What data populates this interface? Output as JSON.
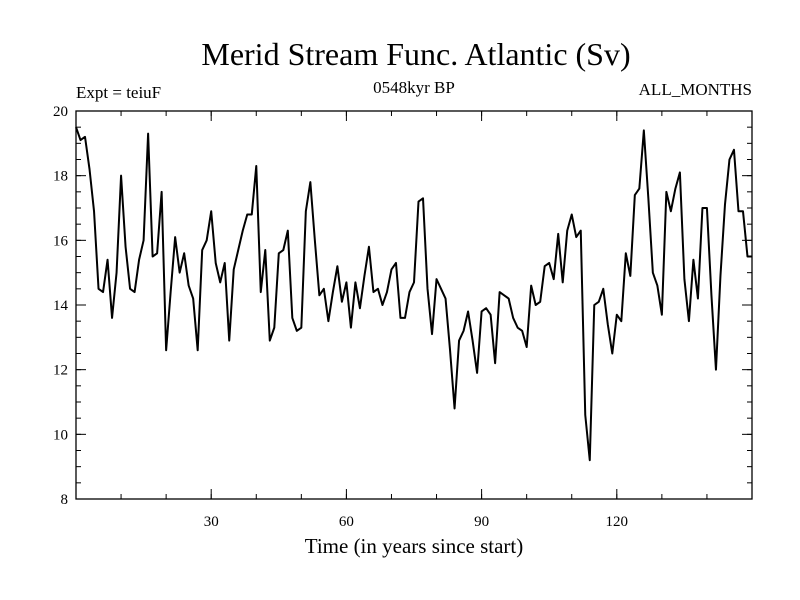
{
  "chart_data": {
    "type": "line",
    "title": "Merid Stream Func. Atlantic (Sv)",
    "subtitle_left": "Expt = teiuF",
    "subtitle_center": "0548kyr BP",
    "subtitle_right": "ALL_MONTHS",
    "xlabel": "Time (in years since start)",
    "ylabel": "",
    "xlim": [
      0,
      150
    ],
    "ylim": [
      8,
      20
    ],
    "xticks_major": [
      30,
      60,
      90,
      120
    ],
    "xticks_minor_step": 10,
    "yticks_major": [
      8,
      10,
      12,
      14,
      16,
      18,
      20
    ],
    "yticks_minor_step": 0.5,
    "grid": false,
    "line_color": "#000000",
    "series": [
      {
        "name": "Merid Stream Func.",
        "x": [
          0,
          1,
          2,
          3,
          4,
          5,
          6,
          7,
          8,
          9,
          10,
          11,
          12,
          13,
          14,
          15,
          16,
          17,
          18,
          19,
          20,
          21,
          22,
          23,
          24,
          25,
          26,
          27,
          28,
          29,
          30,
          31,
          32,
          33,
          34,
          35,
          36,
          37,
          38,
          39,
          40,
          41,
          42,
          43,
          44,
          45,
          46,
          47,
          48,
          49,
          50,
          51,
          52,
          53,
          54,
          55,
          56,
          57,
          58,
          59,
          60,
          61,
          62,
          63,
          64,
          65,
          66,
          67,
          68,
          69,
          70,
          71,
          72,
          73,
          74,
          75,
          76,
          77,
          78,
          79,
          80,
          81,
          82,
          83,
          84,
          85,
          86,
          87,
          88,
          89,
          90,
          91,
          92,
          93,
          94,
          95,
          96,
          97,
          98,
          99,
          100,
          101,
          102,
          103,
          104,
          105,
          106,
          107,
          108,
          109,
          110,
          111,
          112,
          113,
          114,
          115,
          116,
          117,
          118,
          119,
          120,
          121,
          122,
          123,
          124,
          125,
          126,
          127,
          128,
          129,
          130,
          131,
          132,
          133,
          134,
          135,
          136,
          137,
          138,
          139,
          140,
          141,
          142,
          143,
          144,
          145,
          146,
          147,
          148,
          149,
          150
        ],
        "values": [
          19.5,
          19.1,
          19.2,
          18.2,
          16.9,
          14.5,
          14.4,
          15.4,
          13.6,
          15.0,
          18.0,
          15.8,
          14.5,
          14.4,
          15.4,
          16.0,
          19.3,
          15.5,
          15.6,
          17.5,
          12.6,
          14.4,
          16.1,
          15.0,
          15.6,
          14.6,
          14.2,
          12.6,
          15.7,
          16.0,
          16.9,
          15.3,
          14.7,
          15.3,
          12.9,
          15.1,
          15.7,
          16.3,
          16.8,
          16.8,
          18.3,
          14.4,
          15.7,
          12.9,
          13.3,
          15.6,
          15.7,
          16.3,
          13.6,
          13.2,
          13.3,
          16.9,
          17.8,
          16.0,
          14.3,
          14.5,
          13.5,
          14.4,
          15.2,
          14.1,
          14.7,
          13.3,
          14.7,
          13.9,
          14.9,
          15.8,
          14.4,
          14.5,
          14.0,
          14.4,
          15.1,
          15.3,
          13.6,
          13.6,
          14.4,
          14.7,
          17.2,
          17.3,
          14.5,
          13.1,
          14.8,
          14.5,
          14.2,
          12.6,
          10.8,
          12.9,
          13.2,
          13.8,
          12.9,
          11.9,
          13.8,
          13.9,
          13.7,
          12.2,
          14.4,
          14.3,
          14.2,
          13.6,
          13.3,
          13.2,
          12.7,
          14.6,
          14.0,
          14.1,
          15.2,
          15.3,
          14.8,
          16.2,
          14.7,
          16.3,
          16.8,
          16.1,
          16.3,
          10.6,
          9.2,
          14.0,
          14.1,
          14.5,
          13.4,
          12.5,
          13.7,
          13.5,
          15.6,
          14.9,
          17.4,
          17.6,
          19.4,
          17.3,
          15.0,
          14.6,
          13.7,
          17.5,
          16.9,
          17.6,
          18.1,
          14.8,
          13.5,
          15.4,
          14.2,
          17.0,
          17.0,
          14.3,
          12.0,
          14.9,
          17.1,
          18.5,
          18.8,
          16.9,
          16.9,
          15.5,
          15.5
        ]
      }
    ]
  }
}
